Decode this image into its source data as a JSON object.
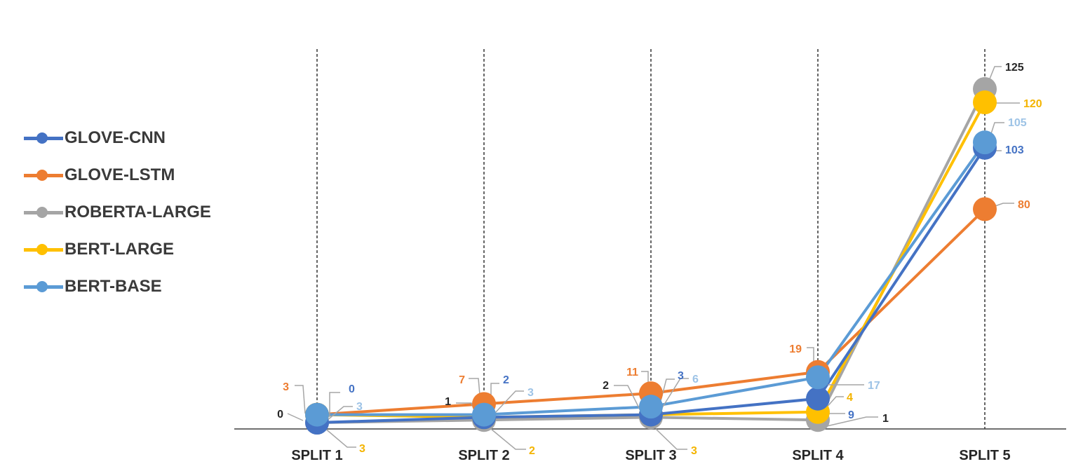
{
  "chart_data": {
    "type": "line",
    "categories": [
      "SPLIT 1",
      "SPLIT 2",
      "SPLIT 3",
      "SPLIT 4",
      "SPLIT 5"
    ],
    "series": [
      {
        "name": "GLOVE-CNN",
        "color": "#4472C4",
        "values": [
          0,
          2,
          3,
          9,
          103
        ]
      },
      {
        "name": "GLOVE-LSTM",
        "color": "#ED7D31",
        "values": [
          3,
          7,
          11,
          19,
          80
        ]
      },
      {
        "name": "ROBERTA-LARGE",
        "color": "#A5A5A5",
        "values": [
          0,
          1,
          2,
          1,
          125
        ]
      },
      {
        "name": "BERT-LARGE",
        "color": "#FFC000",
        "values": [
          3,
          2,
          3,
          4,
          120
        ]
      },
      {
        "name": "BERT-BASE",
        "color": "#5B9BD5",
        "values": [
          3,
          3,
          6,
          17,
          105
        ]
      }
    ],
    "data_label_colors": [
      "#4472C4",
      "#ED7D31",
      "#262626",
      "#F4B400",
      "#9DC3E6"
    ],
    "title": "",
    "xlabel": "",
    "ylabel": "",
    "ylim": [
      0,
      125
    ],
    "grid": "vertical-dashed",
    "legend": "left"
  }
}
